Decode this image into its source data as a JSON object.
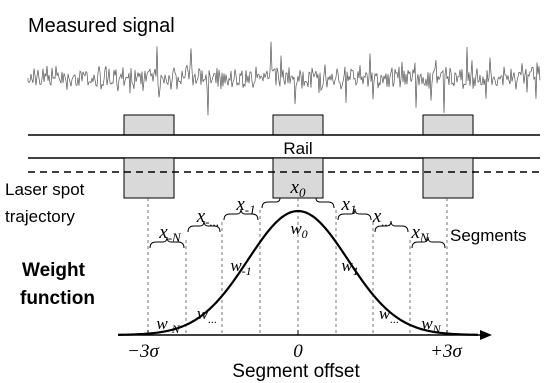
{
  "labels": {
    "measured_signal": "Measured signal",
    "rail": "Rail",
    "laser_spot_line1": "Laser spot",
    "laser_spot_line2": "trajectory",
    "weight_line1": "Weight",
    "weight_line2": "function",
    "segments": "Segments",
    "x_axis_title": "Segment offset"
  },
  "segment_labels": {
    "x_0": {
      "base": "x",
      "sub": "0"
    },
    "x_1": {
      "base": "x",
      "sub": "1"
    },
    "x_m1": {
      "base": "x",
      "sub": "-1"
    },
    "x_mN": {
      "base": "x",
      "sub": "-N"
    },
    "x_N": {
      "base": "x",
      "sub": "N"
    },
    "x_mdots": {
      "base": "x",
      "sub": "-..."
    },
    "x_dots": {
      "base": "x",
      "sub": "..."
    }
  },
  "weight_labels": {
    "w_0": {
      "base": "w",
      "sub": "0"
    },
    "w_1": {
      "base": "w",
      "sub": "1"
    },
    "w_m1": {
      "base": "w",
      "sub": "-1"
    },
    "w_mN": {
      "base": "w",
      "sub": "-N"
    },
    "w_N": {
      "base": "w",
      "sub": "N"
    },
    "w_mdots": {
      "base": "w",
      "sub": "..."
    },
    "w_dots": {
      "base": "w",
      "sub": "..."
    }
  },
  "axis_ticks": {
    "left": "−3σ",
    "center": "0",
    "right": "+3σ"
  },
  "colors": {
    "signal": "#555555",
    "box_fill": "#d9d9d9",
    "line": "#000000"
  }
}
